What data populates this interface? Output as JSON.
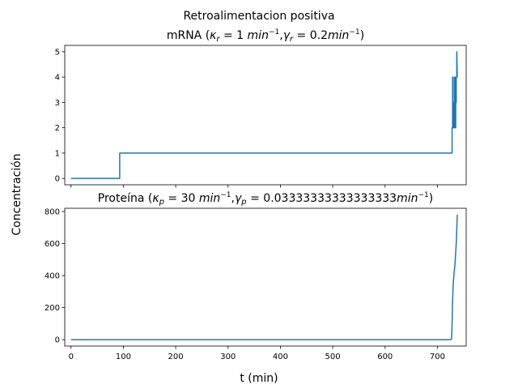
{
  "figure": {
    "suptitle": "Retroalimentacion positiva",
    "ylabel": "Concentración",
    "xlabel": "t (min)"
  },
  "chart_data": [
    {
      "type": "line",
      "title": "mRNA (κr = 1 min−1, γr = 0.2min−1)",
      "title_parts": {
        "lead": "mRNA (",
        "k_sym": "κ",
        "k_sub": "r",
        "k_mid": " = 1 ",
        "k_unit": "min",
        "k_exp": "−1",
        "sep": ",",
        "g_sym": "γ",
        "g_sub": "r",
        "g_mid": " = 0.2",
        "g_unit": "min",
        "g_exp": "−1",
        "tail": ")"
      },
      "xlim": [
        -12,
        755
      ],
      "ylim": [
        -0.25,
        5.25
      ],
      "xticks": [
        0,
        100,
        200,
        300,
        400,
        500,
        600,
        700
      ],
      "show_xticklabels": false,
      "yticks": [
        0,
        1,
        2,
        3,
        4,
        5
      ],
      "grid": false,
      "color": "#1f77b4",
      "series": [
        {
          "x": [
            0,
            93,
            93,
            728,
            728,
            729,
            729,
            730,
            730,
            731,
            731,
            732,
            732,
            733,
            733,
            734,
            734,
            735,
            735,
            736,
            736,
            737,
            737,
            738
          ],
          "y": [
            0,
            0,
            1,
            1,
            2,
            2,
            4,
            4,
            2,
            2,
            3,
            3,
            2,
            2,
            4,
            4,
            2,
            2,
            3,
            3,
            4,
            4,
            5,
            4
          ]
        }
      ]
    },
    {
      "type": "line",
      "title": "Proteína (κp = 30 min−1, γp = 0.03333333333333333min−1)",
      "title_parts": {
        "lead": "Proteína (",
        "k_sym": "κ",
        "k_sub": "p",
        "k_mid": " = 30 ",
        "k_unit": "min",
        "k_exp": "−1",
        "sep": ",",
        "g_sym": "γ",
        "g_sub": "p",
        "g_mid": " = 0.03333333333333333",
        "g_unit": "min",
        "g_exp": "−1",
        "tail": ")"
      },
      "xlim": [
        -12,
        755
      ],
      "ylim": [
        -40,
        820
      ],
      "xticks": [
        0,
        100,
        200,
        300,
        400,
        500,
        600,
        700
      ],
      "show_xticklabels": true,
      "yticks": [
        0,
        200,
        400,
        600,
        800
      ],
      "grid": false,
      "color": "#1f77b4",
      "series": [
        {
          "x": [
            0,
            725,
            727,
            728,
            729,
            730,
            731,
            732,
            733,
            734,
            735,
            736,
            737,
            738
          ],
          "y": [
            0,
            0,
            5,
            90,
            240,
            330,
            380,
            420,
            450,
            490,
            550,
            600,
            690,
            780
          ]
        }
      ]
    }
  ]
}
